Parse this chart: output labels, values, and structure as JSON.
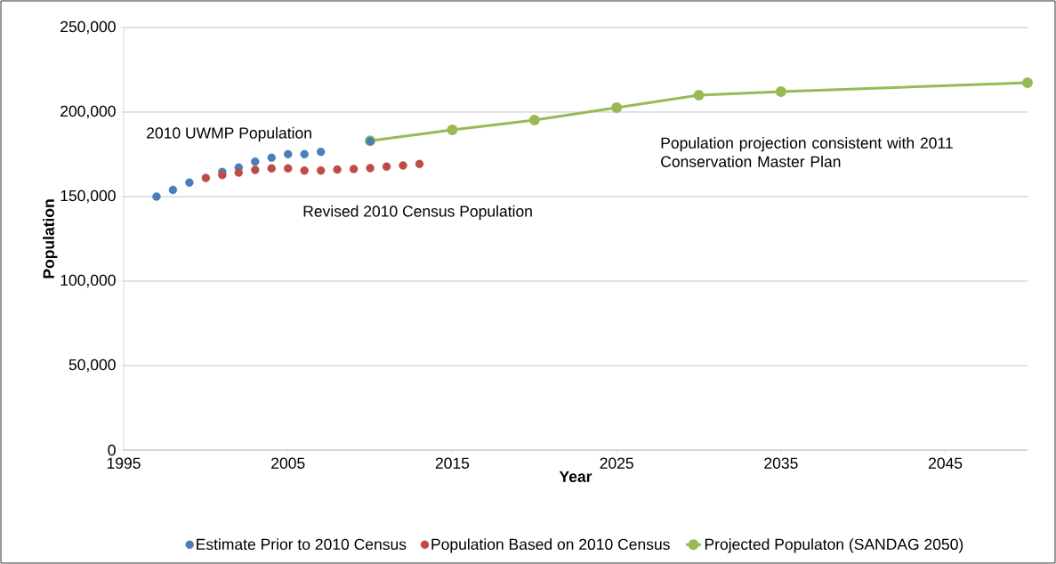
{
  "chart_data": {
    "type": "scatter",
    "xlabel": "Year",
    "ylabel": "Population",
    "xlim": [
      1995,
      2050
    ],
    "xticks": [
      1995,
      2005,
      2015,
      2025,
      2035,
      2045
    ],
    "ylim": [
      0,
      250000
    ],
    "yticks": [
      {
        "value": 0,
        "label": "0"
      },
      {
        "value": 50000,
        "label": "50,000"
      },
      {
        "value": 100000,
        "label": "100,000"
      },
      {
        "value": 150000,
        "label": "150,000"
      },
      {
        "value": 200000,
        "label": "200,000"
      },
      {
        "value": 250000,
        "label": "250,000"
      }
    ],
    "grid": "y",
    "legend": "bottom",
    "marker": "circle",
    "series": [
      {
        "name": "Estimate Prior to 2010 Census",
        "color": "#4a7ebb",
        "x": [
          1997,
          1998,
          1999,
          2000,
          2001,
          2002,
          2003,
          2004,
          2005,
          2006,
          2007,
          2010
        ],
        "values": [
          150000,
          154000,
          158300,
          null,
          164600,
          167200,
          170700,
          173000,
          175100,
          175100,
          176500,
          182800
        ]
      },
      {
        "name": "Population Based on 2010 Census",
        "color": "#be4b48",
        "x": [
          2000,
          2001,
          2002,
          2003,
          2004,
          2005,
          2006,
          2007,
          2008,
          2009,
          2010,
          2011,
          2012,
          2013
        ],
        "values": [
          161000,
          162800,
          164200,
          165800,
          166700,
          166700,
          165400,
          165400,
          166000,
          166300,
          166800,
          167700,
          168400,
          169300
        ]
      },
      {
        "name": "Projected Populaton (SANDAG 2050)",
        "type": "line",
        "color": "#98b954",
        "x": [
          2010,
          2015,
          2020,
          2025,
          2030,
          2035,
          2050
        ],
        "values": [
          183000,
          189500,
          195300,
          202600,
          210000,
          212100,
          217400
        ]
      }
    ],
    "annotations": [
      "2010 UWMP Population",
      "Revised 2010 Census Population",
      "Population projection consistent with 2011 Conservation Master Plan"
    ]
  }
}
